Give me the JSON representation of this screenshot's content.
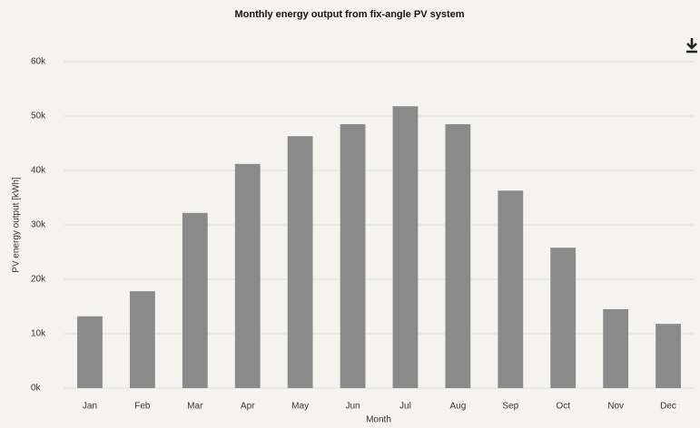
{
  "chart_data": {
    "type": "bar",
    "title": "Monthly energy output from fix-angle PV system",
    "x_label": "Month",
    "y_label": "PV energy output [kWh]",
    "categories": [
      "Jan",
      "Feb",
      "Mar",
      "Apr",
      "May",
      "Jun",
      "Jul",
      "Aug",
      "Sep",
      "Oct",
      "Nov",
      "Dec"
    ],
    "values": [
      13200,
      17800,
      32200,
      41200,
      46300,
      48500,
      51800,
      48500,
      36300,
      25800,
      14500,
      11800
    ],
    "color": "#8a8a8a",
    "ylim": [
      0,
      60000
    ],
    "yticks": [
      {
        "value": 0,
        "label": "0k"
      },
      {
        "value": 10000,
        "label": "10k"
      },
      {
        "value": 20000,
        "label": "20k"
      },
      {
        "value": 30000,
        "label": "30k"
      },
      {
        "value": 40000,
        "label": "40k"
      },
      {
        "value": 50000,
        "label": "50k"
      },
      {
        "value": 60000,
        "label": "60k"
      }
    ],
    "grid": true
  }
}
